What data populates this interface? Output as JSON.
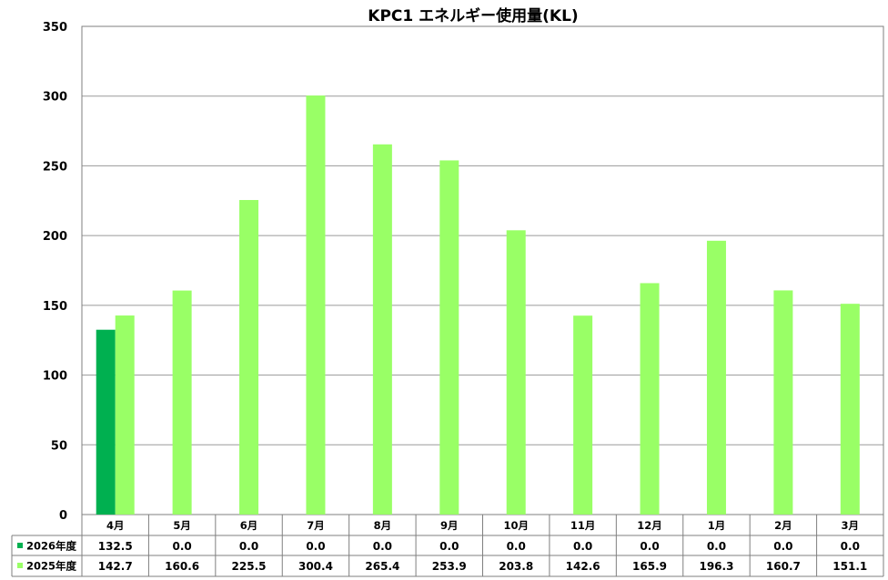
{
  "chart_data": {
    "type": "bar",
    "title": "KPC1 エネルギー使用量(KL)",
    "categories": [
      "4月",
      "5月",
      "6月",
      "7月",
      "8月",
      "9月",
      "10月",
      "11月",
      "12月",
      "1月",
      "2月",
      "3月"
    ],
    "series": [
      {
        "name": "2026年度",
        "color": "#00b050",
        "values": [
          132.5,
          0.0,
          0.0,
          0.0,
          0.0,
          0.0,
          0.0,
          0.0,
          0.0,
          0.0,
          0.0,
          0.0
        ],
        "labels": [
          "132.5",
          "0.0",
          "0.0",
          "0.0",
          "0.0",
          "0.0",
          "0.0",
          "0.0",
          "0.0",
          "0.0",
          "0.0",
          "0.0"
        ]
      },
      {
        "name": "2025年度",
        "color": "#99ff66",
        "values": [
          142.7,
          160.6,
          225.5,
          300.4,
          265.4,
          253.9,
          203.8,
          142.6,
          165.9,
          196.3,
          160.7,
          151.1
        ],
        "labels": [
          "142.7",
          "160.6",
          "225.5",
          "300.4",
          "265.4",
          "253.9",
          "203.8",
          "142.6",
          "165.9",
          "196.3",
          "160.7",
          "151.1"
        ]
      }
    ],
    "ylim": [
      0,
      350
    ],
    "yticks": [
      "0",
      "50",
      "100",
      "150",
      "200",
      "250",
      "300",
      "350"
    ],
    "grid": true,
    "legend": "data-table-left"
  }
}
